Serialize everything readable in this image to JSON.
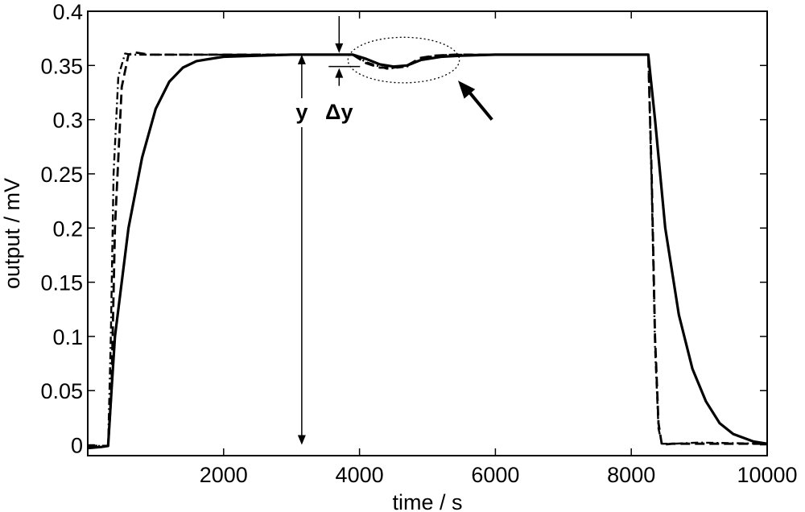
{
  "chart_data": {
    "type": "line",
    "xlabel": "time / s",
    "ylabel": "output / mV",
    "xlim": [
      0,
      10000
    ],
    "ylim": [
      -0.01,
      0.4
    ],
    "xticks": [
      2000,
      4000,
      6000,
      8000,
      10000
    ],
    "xtick_labels": [
      "2000",
      "4000",
      "6000",
      "8000",
      "10000"
    ],
    "yticks": [
      0,
      0.05,
      0.1,
      0.15,
      0.2,
      0.25,
      0.3,
      0.35,
      0.4
    ],
    "ytick_labels": [
      "0",
      "0.05",
      "0.1",
      "0.15",
      "0.2",
      "0.25",
      "0.3",
      "0.35",
      "0.4"
    ],
    "grid": false,
    "series": [
      {
        "style": "solid",
        "x": [
          0,
          200,
          300,
          350,
          400,
          600,
          800,
          1000,
          1200,
          1400,
          1600,
          2000,
          2500,
          3000,
          3500,
          3900,
          4100,
          4300,
          4500,
          4700,
          4900,
          5200,
          5500,
          6000,
          7000,
          8000,
          8250,
          8350,
          8500,
          8700,
          8900,
          9100,
          9300,
          9500,
          9800,
          10000
        ],
        "y": [
          -0.003,
          -0.002,
          -0.001,
          0.05,
          0.1,
          0.2,
          0.265,
          0.31,
          0.335,
          0.348,
          0.354,
          0.358,
          0.359,
          0.36,
          0.36,
          0.36,
          0.356,
          0.351,
          0.349,
          0.35,
          0.355,
          0.358,
          0.359,
          0.36,
          0.36,
          0.36,
          0.36,
          0.3,
          0.2,
          0.12,
          0.07,
          0.04,
          0.02,
          0.01,
          0.003,
          0.001
        ]
      },
      {
        "style": "dashed",
        "x": [
          0,
          300,
          350,
          400,
          500,
          600,
          700,
          900,
          1200,
          1500,
          2000,
          3000,
          3900,
          4100,
          4300,
          4500,
          4700,
          4900,
          5100,
          5400,
          6000,
          7000,
          8000,
          8250,
          8300,
          8350,
          8400,
          8450,
          8600,
          9000,
          10000
        ],
        "y": [
          -0.001,
          -0.001,
          0.05,
          0.2,
          0.33,
          0.36,
          0.362,
          0.36,
          0.36,
          0.36,
          0.36,
          0.36,
          0.36,
          0.352,
          0.348,
          0.348,
          0.35,
          0.357,
          0.359,
          0.36,
          0.36,
          0.36,
          0.36,
          0.36,
          0.25,
          0.1,
          0.02,
          0.0,
          0.001,
          0.001,
          0.001
        ]
      },
      {
        "style": "dash-dot",
        "x": [
          0,
          300,
          340,
          380,
          450,
          550,
          650,
          800,
          1200,
          2000,
          3000,
          3900,
          4100,
          4400,
          4700,
          4900,
          5100,
          5400,
          6000,
          7000,
          8000,
          8250,
          8300,
          8350,
          8400,
          8450,
          8600,
          9000,
          10000
        ],
        "y": [
          -0.001,
          -0.001,
          0.1,
          0.25,
          0.34,
          0.361,
          0.36,
          0.36,
          0.36,
          0.36,
          0.36,
          0.36,
          0.353,
          0.347,
          0.349,
          0.356,
          0.359,
          0.36,
          0.36,
          0.36,
          0.36,
          0.36,
          0.24,
          0.09,
          0.015,
          0.001,
          0.001,
          0.002,
          0.001
        ]
      }
    ],
    "annotations": {
      "y_label": "y",
      "dy_label": "Δy",
      "y_arrow": {
        "x": 3150,
        "y_from": 0.0,
        "y_to": 0.36
      },
      "dy_marker": {
        "x": 3700,
        "y_top": 0.36,
        "y_bottom": 0.349
      },
      "ellipse": {
        "cx": 4650,
        "cy": 0.355,
        "rx": 820,
        "ry": 0.021
      },
      "pointer_arrow": {
        "x_from": 5950,
        "y_from": 0.3,
        "x_to": 5450,
        "y_to": 0.336
      }
    }
  }
}
